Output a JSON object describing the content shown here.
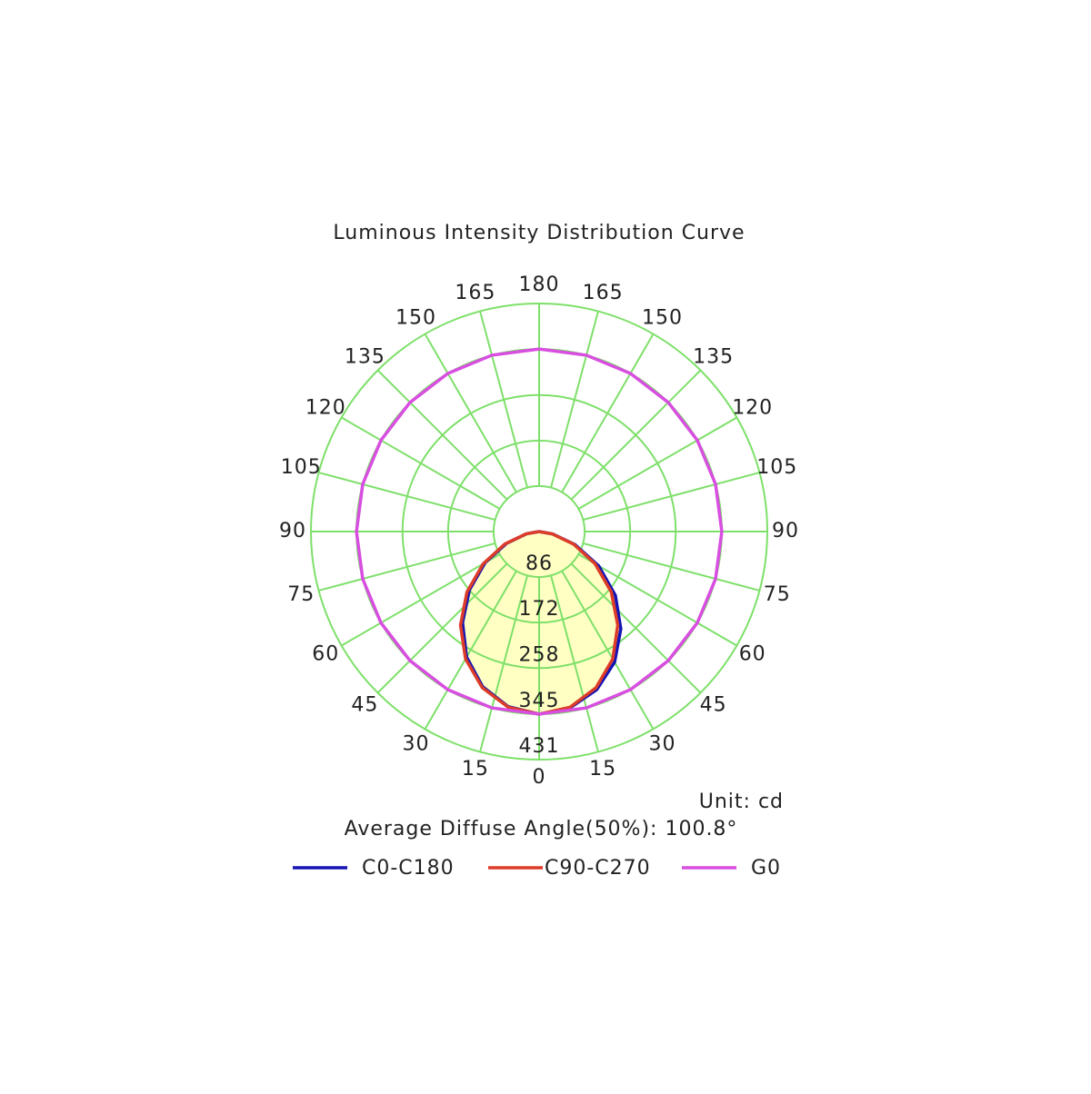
{
  "chart_data": {
    "type": "polar",
    "title": "Luminous Intensity Distribution Curve",
    "unit_label": "Unit: cd",
    "annotation": "Average Diffuse Angle(50%): 100.8°",
    "rlim": [
      0,
      431
    ],
    "rticks": [
      86,
      172,
      258,
      345,
      431
    ],
    "angle_ticks": [
      0,
      15,
      30,
      45,
      60,
      75,
      90,
      105,
      120,
      135,
      150,
      165,
      180
    ],
    "grid_color": "#7ee06a",
    "fill_color": "#ffffc4",
    "series": [
      {
        "name": "C0-C180",
        "color": "#1414b4",
        "angles": [
          -90,
          -80,
          -70,
          -60,
          -50,
          -40,
          -30,
          -20,
          -10,
          0,
          10,
          20,
          30,
          40,
          50,
          60,
          70,
          80,
          90
        ],
        "values": [
          0,
          24,
          66,
          118,
          172,
          225,
          274,
          312,
          336,
          345,
          338,
          318,
          285,
          240,
          188,
          130,
          72,
          26,
          0
        ]
      },
      {
        "name": "C90-C270",
        "color": "#dc3c28",
        "angles": [
          -90,
          -80,
          -70,
          -60,
          -50,
          -40,
          -30,
          -20,
          -10,
          0,
          10,
          20,
          30,
          40,
          50,
          60,
          70,
          80,
          90
        ],
        "values": [
          0,
          25,
          69,
          122,
          178,
          231,
          278,
          314,
          337,
          345,
          337,
          314,
          278,
          231,
          178,
          122,
          69,
          25,
          0
        ]
      },
      {
        "name": "G0",
        "color": "#d84ee0",
        "angles": [
          -180,
          -165,
          -150,
          -135,
          -120,
          -105,
          -90,
          -75,
          -60,
          -45,
          -30,
          -15,
          0,
          15,
          30,
          45,
          60,
          75,
          90,
          105,
          120,
          135,
          150,
          165,
          180
        ],
        "values": [
          345,
          345,
          345,
          345,
          345,
          345,
          345,
          345,
          345,
          345,
          345,
          345,
          345,
          345,
          345,
          345,
          345,
          345,
          345,
          345,
          345,
          345,
          345,
          345,
          345
        ]
      }
    ]
  }
}
